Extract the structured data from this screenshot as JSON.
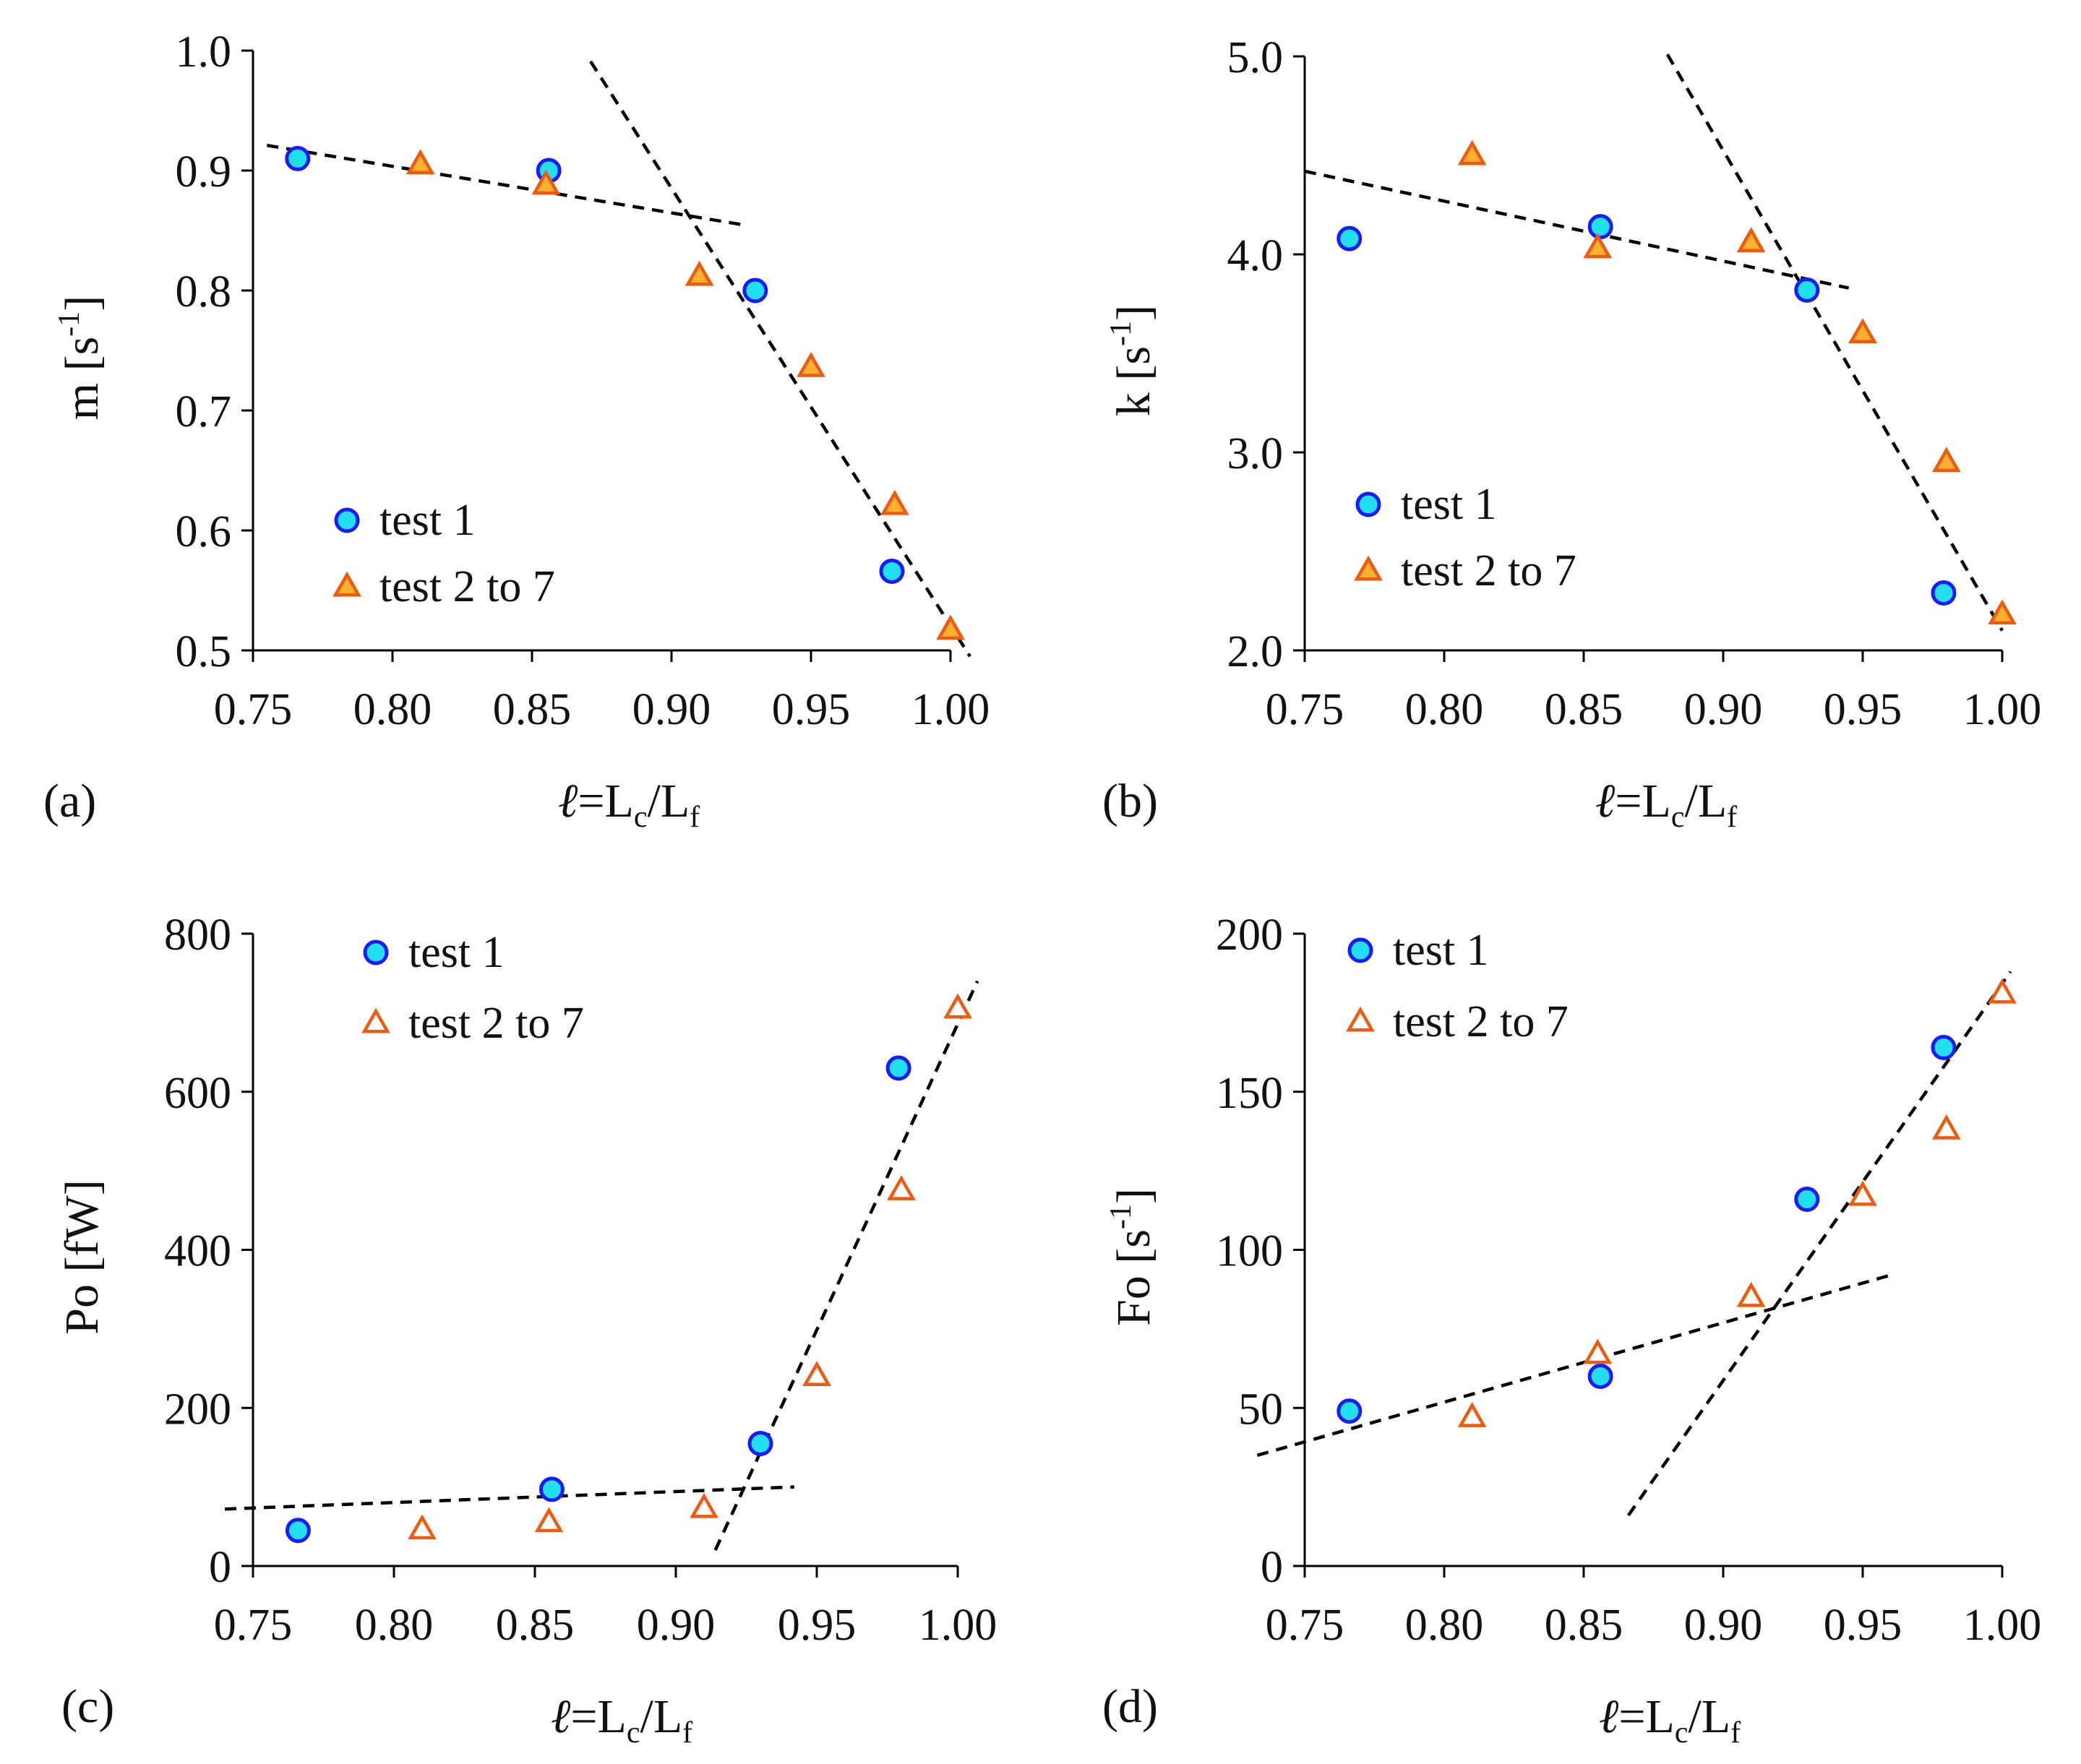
{
  "colors": {
    "circle_fill": "#22e0f0",
    "circle_stroke": "#1a1aff",
    "triangle_fill": "#ffb030",
    "triangle_stroke": "#ee5a10",
    "triangle_open_fill": "#ffffff",
    "axis": "#000000",
    "fit_line": "#000000"
  },
  "chart_data": [
    {
      "type": "scatter",
      "panel_label": "(a)",
      "xlabel": {
        "main": "ℓ=L",
        "sub1": "c",
        "mid": "/L",
        "sub2": "f"
      },
      "ylabel": {
        "main": "m [s",
        "sup": "-1",
        "end": "]"
      },
      "xlim": [
        0.75,
        1.0
      ],
      "ylim": [
        0.5,
        1.0
      ],
      "xticks": [
        "0.75",
        "0.80",
        "0.85",
        "0.90",
        "0.95",
        "1.00"
      ],
      "yticks": [
        "0.5",
        "0.6",
        "0.7",
        "0.8",
        "0.9",
        "1.0"
      ],
      "series": [
        {
          "name": "test 1",
          "marker": "circle",
          "points": [
            [
              0.766,
              0.91
            ],
            [
              0.856,
              0.9
            ],
            [
              0.93,
              0.8
            ],
            [
              0.979,
              0.566
            ]
          ]
        },
        {
          "name": "test 2 to 7",
          "marker": "triangle",
          "points": [
            [
              0.81,
              0.905
            ],
            [
              0.855,
              0.888
            ],
            [
              0.91,
              0.812
            ],
            [
              0.95,
              0.736
            ],
            [
              0.98,
              0.621
            ],
            [
              1.0,
              0.517
            ]
          ]
        }
      ],
      "fit_lines": [
        [
          [
            0.755,
            0.921
          ],
          [
            0.925,
            0.855
          ]
        ],
        [
          [
            0.871,
            0.991
          ],
          [
            1.007,
            0.495
          ]
        ]
      ],
      "legend": "lower-left"
    },
    {
      "type": "scatter",
      "panel_label": "(b)",
      "xlabel": {
        "main": "ℓ=L",
        "sub1": "c",
        "mid": "/L",
        "sub2": "f"
      },
      "ylabel": {
        "main": "k [s",
        "sup": "-1",
        "end": "]"
      },
      "xlim": [
        0.75,
        1.0
      ],
      "ylim": [
        2.0,
        5.0
      ],
      "xticks": [
        "0.75",
        "0.80",
        "0.85",
        "0.90",
        "0.95",
        "1.00"
      ],
      "yticks": [
        "2.0",
        "3.0",
        "4.0",
        "5.0"
      ],
      "series": [
        {
          "name": "test 1",
          "marker": "circle",
          "points": [
            [
              0.766,
              4.08
            ],
            [
              0.856,
              4.14
            ],
            [
              0.93,
              3.82
            ],
            [
              0.979,
              2.29
            ]
          ]
        },
        {
          "name": "test 2 to 7",
          "marker": "triangle",
          "points": [
            [
              0.81,
              4.5
            ],
            [
              0.855,
              4.03
            ],
            [
              0.91,
              4.06
            ],
            [
              0.95,
              3.6
            ],
            [
              0.98,
              2.95
            ],
            [
              1.0,
              2.18
            ]
          ]
        }
      ],
      "fit_lines": [
        [
          [
            0.75,
            4.42
          ],
          [
            0.945,
            3.83
          ]
        ],
        [
          [
            0.88,
            5.01
          ],
          [
            1.0,
            2.1
          ]
        ]
      ],
      "legend": "lower-left"
    },
    {
      "type": "scatter",
      "panel_label": "(c)",
      "xlabel": {
        "main": "ℓ=L",
        "sub1": "c",
        "mid": "/L",
        "sub2": "f"
      },
      "ylabel": {
        "main": "Po [fW]",
        "sup": "",
        "end": ""
      },
      "xlim": [
        0.75,
        1.0
      ],
      "ylim": [
        0,
        800
      ],
      "xticks": [
        "0.75",
        "0.80",
        "0.85",
        "0.90",
        "0.95",
        "1.00"
      ],
      "yticks": [
        "0",
        "200",
        "400",
        "600",
        "800"
      ],
      "series": [
        {
          "name": "test 1",
          "marker": "circle",
          "points": [
            [
              0.766,
              45
            ],
            [
              0.856,
              97
            ],
            [
              0.93,
              155
            ],
            [
              0.979,
              630
            ]
          ]
        },
        {
          "name": "test 2 to 7",
          "marker": "triangle-open",
          "points": [
            [
              0.81,
              46
            ],
            [
              0.855,
              55
            ],
            [
              0.91,
              73
            ],
            [
              0.95,
              240
            ],
            [
              0.98,
              475
            ],
            [
              1.0,
              705
            ]
          ]
        }
      ],
      "fit_lines": [
        [
          [
            0.74,
            72
          ],
          [
            0.942,
            100
          ]
        ],
        [
          [
            0.914,
            20
          ],
          [
            1.007,
            740
          ]
        ]
      ],
      "legend": "top-left"
    },
    {
      "type": "scatter",
      "panel_label": "(d)",
      "xlabel": {
        "main": "ℓ=L",
        "sub1": "c",
        "mid": "/L",
        "sub2": "f"
      },
      "ylabel": {
        "main": "Fo [s",
        "sup": "-1",
        "end": "]"
      },
      "xlim": [
        0.75,
        1.0
      ],
      "ylim": [
        0,
        200
      ],
      "xticks": [
        "0.75",
        "0.80",
        "0.85",
        "0.90",
        "0.95",
        "1.00"
      ],
      "yticks": [
        "0",
        "50",
        "100",
        "150",
        "200"
      ],
      "series": [
        {
          "name": "test 1",
          "marker": "circle",
          "points": [
            [
              0.766,
              49
            ],
            [
              0.856,
              60
            ],
            [
              0.93,
              116
            ],
            [
              0.979,
              164
            ]
          ]
        },
        {
          "name": "test 2 to 7",
          "marker": "triangle-open",
          "points": [
            [
              0.81,
              47
            ],
            [
              0.855,
              67
            ],
            [
              0.91,
              85
            ],
            [
              0.95,
              117
            ],
            [
              0.98,
              138
            ],
            [
              1.0,
              181
            ]
          ]
        }
      ],
      "fit_lines": [
        [
          [
            0.733,
            35
          ],
          [
            0.96,
            92
          ]
        ],
        [
          [
            0.866,
            16
          ],
          [
            1.003,
            188
          ]
        ]
      ],
      "legend": "top-left"
    }
  ]
}
